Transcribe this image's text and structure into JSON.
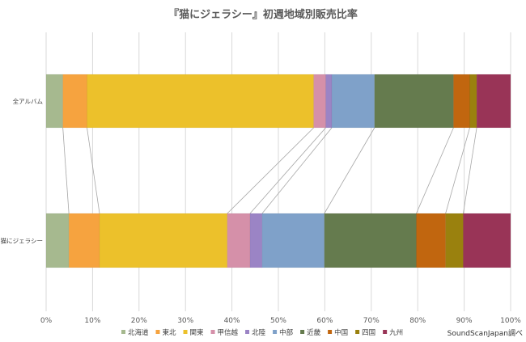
{
  "chart_data": {
    "type": "bar",
    "orientation": "horizontal-stacked-100",
    "title": "『猫にジェラシー』初週地域別販売比率",
    "categories": [
      "全アルバム",
      "猫にジェラシー"
    ],
    "series": [
      {
        "name": "北海道",
        "color": "#a6b98f",
        "values": [
          3.6,
          4.9
        ]
      },
      {
        "name": "東北",
        "color": "#f6a33f",
        "values": [
          5.2,
          6.6
        ]
      },
      {
        "name": "関東",
        "color": "#ecc12b",
        "values": [
          48.8,
          27.5
        ]
      },
      {
        "name": "甲信越",
        "color": "#d590a9",
        "values": [
          2.6,
          4.9
        ]
      },
      {
        "name": "北陸",
        "color": "#9b84c5",
        "values": [
          1.3,
          2.6
        ]
      },
      {
        "name": "中部",
        "color": "#7fa1c9",
        "values": [
          9.2,
          13.4
        ]
      },
      {
        "name": "近畿",
        "color": "#657b4e",
        "values": [
          17.0,
          19.8
        ]
      },
      {
        "name": "中国",
        "color": "#c1660f",
        "values": [
          3.5,
          6.3
        ]
      },
      {
        "name": "四国",
        "color": "#9a810e",
        "values": [
          1.5,
          3.8
        ]
      },
      {
        "name": "九州",
        "color": "#993457",
        "values": [
          7.3,
          10.2
        ]
      }
    ],
    "xlim": [
      0,
      100
    ],
    "xticks": [
      "0%",
      "10%",
      "20%",
      "30%",
      "40%",
      "50%",
      "60%",
      "70%",
      "80%",
      "90%",
      "100%"
    ],
    "grid": true,
    "legend": "bottom",
    "source_note": "SoundScanJapan調べ"
  }
}
